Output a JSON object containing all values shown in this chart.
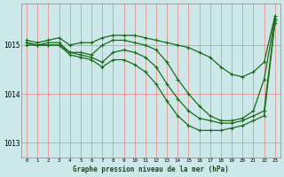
{
  "background_color": "#cce8e8",
  "plot_bg_color": "#cce8e8",
  "grid_color": "#f08080",
  "line_color": "#1a6b1a",
  "title": "Graphe pression niveau de la mer (hPa)",
  "ylabel_ticks": [
    1013,
    1014,
    1015
  ],
  "xlim": [
    -0.5,
    23.5
  ],
  "ylim": [
    1012.7,
    1015.85
  ],
  "lines": [
    {
      "x": [
        0,
        1,
        2,
        3,
        4,
        5,
        6,
        7,
        8,
        9,
        10,
        11,
        12,
        13,
        14,
        15,
        16,
        17,
        18,
        19,
        20,
        21,
        22,
        23
      ],
      "y": [
        1015.1,
        1015.05,
        1015.1,
        1015.15,
        1015.0,
        1015.05,
        1015.05,
        1015.15,
        1015.2,
        1015.2,
        1015.2,
        1015.15,
        1015.1,
        1015.05,
        1015.0,
        1014.95,
        1014.85,
        1014.75,
        1014.55,
        1014.4,
        1014.35,
        1014.45,
        1014.65,
        1015.6
      ]
    },
    {
      "x": [
        0,
        1,
        2,
        3,
        4,
        5,
        6,
        7,
        8,
        9,
        10,
        11,
        12,
        13,
        14,
        15,
        16,
        17,
        18,
        19,
        20,
        21,
        22,
        23
      ],
      "y": [
        1015.05,
        1015.0,
        1015.05,
        1015.05,
        1014.85,
        1014.85,
        1014.8,
        1015.0,
        1015.1,
        1015.1,
        1015.05,
        1015.0,
        1014.9,
        1014.65,
        1014.3,
        1014.0,
        1013.75,
        1013.55,
        1013.45,
        1013.45,
        1013.5,
        1013.65,
        1014.3,
        1015.55
      ]
    },
    {
      "x": [
        0,
        1,
        2,
        3,
        4,
        5,
        6,
        7,
        8,
        9,
        10,
        11,
        12,
        13,
        14,
        15,
        16,
        17,
        18,
        19,
        20,
        21,
        22,
        23
      ],
      "y": [
        1015.05,
        1015.0,
        1015.0,
        1015.0,
        1014.85,
        1014.8,
        1014.75,
        1014.65,
        1014.85,
        1014.9,
        1014.85,
        1014.75,
        1014.55,
        1014.2,
        1013.9,
        1013.65,
        1013.5,
        1013.45,
        1013.4,
        1013.4,
        1013.45,
        1013.55,
        1013.65,
        1015.5
      ]
    },
    {
      "x": [
        0,
        1,
        2,
        3,
        4,
        5,
        6,
        7,
        8,
        9,
        10,
        11,
        12,
        13,
        14,
        15,
        16,
        17,
        18,
        19,
        20,
        21,
        22,
        23
      ],
      "y": [
        1015.0,
        1015.0,
        1015.0,
        1015.0,
        1014.8,
        1014.75,
        1014.7,
        1014.55,
        1014.7,
        1014.7,
        1014.6,
        1014.45,
        1014.2,
        1013.85,
        1013.55,
        1013.35,
        1013.25,
        1013.25,
        1013.25,
        1013.3,
        1013.35,
        1013.45,
        1013.55,
        1015.45
      ]
    }
  ],
  "marker": "+",
  "markersize": 3,
  "linewidth": 0.9,
  "figsize": [
    3.2,
    2.0
  ],
  "dpi": 100
}
